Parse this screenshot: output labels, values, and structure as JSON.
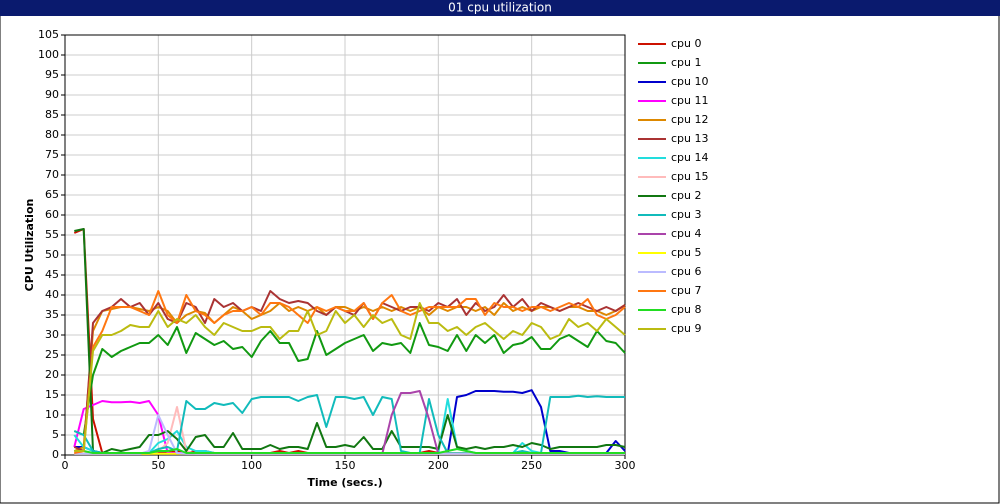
{
  "chart_data": {
    "type": "line",
    "title": "01 cpu utilization",
    "x_label": "Time (secs.)",
    "y_label": "CPU Utilization",
    "xlim": [
      0,
      300
    ],
    "xticks": [
      0,
      50,
      100,
      150,
      200,
      250,
      300
    ],
    "ylim": [
      0,
      105
    ],
    "yticks": [
      0,
      5,
      10,
      15,
      20,
      25,
      30,
      35,
      40,
      45,
      50,
      55,
      60,
      65,
      70,
      75,
      80,
      85,
      90,
      95,
      100,
      105
    ],
    "grid": true,
    "legend": "right",
    "x": [
      5,
      10,
      15,
      20,
      25,
      30,
      35,
      40,
      45,
      50,
      55,
      60,
      65,
      70,
      75,
      80,
      85,
      90,
      95,
      100,
      105,
      110,
      115,
      120,
      125,
      130,
      135,
      140,
      145,
      150,
      155,
      160,
      165,
      170,
      175,
      180,
      185,
      190,
      195,
      200,
      205,
      210,
      215,
      220,
      225,
      230,
      235,
      240,
      245,
      250,
      255,
      260,
      265,
      270,
      275,
      280,
      285,
      290,
      295,
      300
    ],
    "series": [
      {
        "name": "cpu 0",
        "color": "#cc1100",
        "values": [
          55.5,
          56.5,
          9,
          0.5,
          0.5,
          0.3,
          0.5,
          0.5,
          0.3,
          0.5,
          0.5,
          1,
          0.5,
          1,
          1,
          0.5,
          0.5,
          0.5,
          0.5,
          0.5,
          0.5,
          0.5,
          1,
          0.5,
          1,
          0.5,
          0.5,
          0.5,
          0.5,
          0.5,
          0.5,
          0.5,
          0.5,
          0.5,
          0.5,
          0.5,
          0.5,
          0.5,
          1,
          0.5,
          0.5,
          0.5,
          0.5,
          0.5,
          0.5,
          0.5,
          0.5,
          0.5,
          0.5,
          0.5,
          0.5,
          0.5,
          0.5,
          0.5,
          0.5,
          0.5,
          0.5,
          0.5,
          0.5,
          0.5
        ]
      },
      {
        "name": "cpu 1",
        "color": "#119911",
        "values": [
          6,
          5,
          20,
          26.5,
          24.5,
          26,
          27,
          28,
          28,
          30,
          27.5,
          32,
          25.5,
          30.5,
          29,
          27.5,
          28.5,
          26.5,
          27,
          24.5,
          28.5,
          31,
          28,
          28,
          23.5,
          24,
          31,
          25,
          26.5,
          28,
          29,
          30,
          26,
          28,
          27.5,
          28,
          25.5,
          33,
          27.5,
          27,
          26,
          30,
          26,
          30,
          28,
          30,
          25.5,
          27.5,
          28,
          29.5,
          26.5,
          26.5,
          29,
          30,
          28.5,
          27,
          31,
          28.5,
          28,
          25.5
        ]
      },
      {
        "name": "cpu 10",
        "color": "#0000cc",
        "values": [
          2,
          2,
          1,
          0.5,
          0.3,
          0.3,
          0.3,
          0.3,
          0.3,
          0.3,
          0.3,
          0.3,
          0.3,
          0.3,
          0.3,
          0.3,
          0.3,
          0.3,
          0.3,
          0.3,
          0.3,
          0.3,
          0.3,
          0.3,
          0.3,
          0.3,
          0.3,
          0.3,
          0.3,
          0.3,
          0.3,
          0.3,
          0.3,
          0.3,
          0.3,
          0.3,
          0.3,
          0.3,
          0.3,
          0.3,
          0.3,
          14.5,
          15,
          16,
          16,
          16,
          15.8,
          15.8,
          15.5,
          16.2,
          12,
          1,
          1,
          0.5,
          0.5,
          0.5,
          0.5,
          0.5,
          3.5,
          1
        ]
      },
      {
        "name": "cpu 11",
        "color": "#ff00ff",
        "values": [
          2,
          11.5,
          12.5,
          13.5,
          13.2,
          13.2,
          13.3,
          13,
          13.5,
          10,
          0.5,
          0.5,
          0.5,
          0.3,
          0.3,
          0.3,
          0.3,
          0.3,
          0.3,
          0.3,
          0.3,
          0.3,
          0.3,
          0.3,
          0.3,
          0.3,
          0.3,
          0.3,
          0.3,
          0.3,
          0.3,
          0.3,
          0.3,
          0.3,
          0.3,
          0.3,
          0.3,
          0.3,
          0.3,
          0.3,
          0.3,
          0.3,
          0.3,
          0.3,
          0.3,
          0.3,
          0.3,
          0.3,
          0.3,
          0.3,
          0.3,
          0.3,
          0.3,
          0.3,
          0.3,
          0.3,
          0.3,
          0.3,
          0.3,
          0.3
        ]
      },
      {
        "name": "cpu 12",
        "color": "#dd8800",
        "values": [
          1,
          2,
          31,
          36,
          36.5,
          37,
          37,
          36.5,
          36,
          37,
          36,
          33,
          35,
          36,
          35.5,
          33,
          35,
          37,
          36,
          34,
          35,
          36,
          38,
          36,
          37,
          36,
          37,
          35,
          37,
          37,
          36,
          37,
          36,
          37,
          36,
          37,
          36,
          37,
          35,
          37,
          36,
          37,
          37,
          36,
          37,
          35,
          38,
          36,
          37,
          36,
          37,
          37,
          36,
          37,
          37,
          36,
          36,
          35,
          36,
          37.5
        ]
      },
      {
        "name": "cpu 13",
        "color": "#aa3333",
        "values": [
          2,
          1,
          33,
          36,
          37,
          39,
          37,
          38,
          35,
          38,
          34,
          33,
          38,
          37,
          33,
          39,
          37,
          38,
          36,
          37,
          36,
          41,
          39,
          38,
          38.5,
          38,
          36,
          35,
          37,
          36,
          35,
          38,
          34,
          38,
          37,
          36,
          37,
          37,
          36,
          38,
          37,
          39,
          35,
          38,
          36,
          37,
          40,
          37,
          39,
          36,
          38,
          37,
          36,
          37,
          38,
          37,
          36,
          37,
          36,
          37.5
        ]
      },
      {
        "name": "cpu 14",
        "color": "#22dddd",
        "values": [
          5,
          2,
          1,
          0.5,
          0.5,
          0.5,
          0.5,
          0.5,
          0.5,
          3,
          4,
          6,
          2,
          1,
          1,
          0.5,
          0.5,
          0.5,
          0.5,
          0.5,
          0.5,
          0.5,
          0.5,
          0.5,
          0.5,
          0.5,
          0.5,
          0.5,
          0.5,
          0.5,
          0.5,
          0.5,
          0.5,
          0.5,
          0.5,
          0.5,
          0.5,
          0.5,
          0.5,
          0.5,
          14,
          2,
          1,
          0.5,
          0.5,
          0.5,
          0.5,
          0.5,
          3,
          1,
          0.5,
          0.5,
          0.5,
          0.5,
          0.5,
          0.5,
          0.5,
          0.5,
          0.5,
          0.5
        ]
      },
      {
        "name": "cpu 15",
        "color": "#ffbbbb",
        "values": [
          0.3,
          0.3,
          0.3,
          0.3,
          0.3,
          0.3,
          0.3,
          0.3,
          0.3,
          1,
          3,
          12,
          1,
          0.3,
          0.3,
          0.3,
          0.3,
          0.3,
          0.3,
          0.3,
          0.3,
          0.3,
          0.3,
          0.3,
          0.3,
          0.3,
          0.3,
          0.3,
          0.3,
          0.3,
          0.3,
          0.3,
          0.3,
          0.3,
          0.3,
          0.3,
          0.3,
          0.3,
          0.3,
          0.3,
          0.3,
          0.3,
          0.3,
          0.3,
          0.3,
          0.3,
          0.3,
          0.3,
          0.3,
          0.3,
          0.3,
          0.3,
          0.3,
          0.3,
          0.3,
          0.3,
          0.3,
          0.3,
          0.3,
          0.3
        ]
      },
      {
        "name": "cpu 2",
        "color": "#117711",
        "values": [
          56,
          56.5,
          1,
          0.5,
          1.5,
          1,
          1.5,
          2,
          5,
          5,
          6,
          4,
          1,
          4.5,
          5,
          2,
          2,
          5.5,
          1.5,
          1.5,
          1.5,
          2.5,
          1.5,
          2,
          2,
          1.5,
          8,
          2,
          2,
          2.5,
          2,
          4.5,
          1.5,
          1.5,
          6,
          2,
          2,
          2,
          2,
          1.5,
          10,
          2,
          1.5,
          2,
          1.5,
          2,
          2,
          2.5,
          2,
          3,
          2.5,
          1.5,
          2,
          2,
          2,
          2,
          2,
          2.5,
          2.5,
          2
        ]
      },
      {
        "name": "cpu 3",
        "color": "#11bbbb",
        "values": [
          6,
          5,
          1,
          0.5,
          0.5,
          0.5,
          0.5,
          0.5,
          0.5,
          1.5,
          2,
          1,
          13.5,
          11.5,
          11.5,
          13,
          12.5,
          13,
          10.5,
          14,
          14.5,
          14.5,
          14.5,
          14.5,
          13.5,
          14.5,
          15,
          7,
          14.5,
          14.5,
          14,
          14.5,
          10,
          14.5,
          14,
          1,
          0.5,
          0.5,
          14,
          5,
          0.5,
          0.5,
          0.5,
          0.5,
          0.5,
          0.5,
          0.5,
          0.5,
          1,
          0.5,
          0.5,
          14.5,
          14.5,
          14.5,
          14.8,
          14.5,
          14.7,
          14.5,
          14.5,
          14.5
        ]
      },
      {
        "name": "cpu 4",
        "color": "#aa44aa",
        "values": [
          0.3,
          0.3,
          0.3,
          0.3,
          0.3,
          0.3,
          0.3,
          0.3,
          0.3,
          0.3,
          0.3,
          0.3,
          0.3,
          0.3,
          0.3,
          0.3,
          0.3,
          0.3,
          0.3,
          0.3,
          0.3,
          0.3,
          0.3,
          0.3,
          0.3,
          0.3,
          0.3,
          0.3,
          0.3,
          0.3,
          0.3,
          0.3,
          0.3,
          0.3,
          10,
          15.5,
          15.5,
          16,
          9,
          0.3,
          0.3,
          0.3,
          0.3,
          0.3,
          0.3,
          0.3,
          0.3,
          0.3,
          0.3,
          0.3,
          0.3,
          0.3,
          0.3,
          0.3,
          0.3,
          0.3,
          0.3,
          0.3,
          0.3,
          0.3
        ]
      },
      {
        "name": "cpu 5",
        "color": "#ffff00",
        "values": [
          0.3,
          0.3,
          0.3,
          0.3,
          0.3,
          0.3,
          0.3,
          0.3,
          0.3,
          0.3,
          0.3,
          0.3,
          0.3,
          0.3,
          0.3,
          0.3,
          0.3,
          0.3,
          0.3,
          0.3,
          0.3,
          0.3,
          0.3,
          0.3,
          0.3,
          0.3,
          0.3,
          0.3,
          0.3,
          0.3,
          0.3,
          0.3,
          0.3,
          0.3,
          0.3,
          0.3,
          0.3,
          0.3,
          0.3,
          0.3,
          0.3,
          0.3,
          0.3,
          0.3,
          0.3,
          0.3,
          0.3,
          0.3,
          0.3,
          0.3,
          0.3,
          0.3,
          0.3,
          0.3,
          0.3,
          0.3,
          0.3,
          0.3,
          0.3,
          0.3
        ]
      },
      {
        "name": "cpu 6",
        "color": "#bbbbff",
        "values": [
          0.3,
          0.3,
          0.3,
          0.3,
          0.3,
          0.3,
          0.3,
          0.3,
          1,
          10,
          5,
          0.5,
          0.3,
          0.3,
          0.3,
          0.3,
          0.3,
          0.3,
          0.3,
          0.3,
          0.3,
          0.3,
          0.3,
          0.3,
          0.3,
          0.3,
          0.3,
          0.3,
          0.3,
          0.3,
          0.3,
          0.3,
          0.3,
          0.3,
          0.3,
          0.3,
          0.3,
          0.3,
          0.3,
          0.3,
          0.3,
          0.3,
          0.3,
          0.3,
          0.3,
          0.3,
          0.3,
          0.3,
          0.3,
          0.3,
          0.3,
          0.3,
          0.3,
          0.3,
          0.3,
          0.3,
          0.3,
          0.3,
          0.3,
          0.3
        ]
      },
      {
        "name": "cpu 7",
        "color": "#ff7711",
        "values": [
          0.5,
          1,
          27,
          31,
          37,
          37,
          37,
          36,
          35,
          41,
          35,
          33,
          40,
          36,
          35,
          33,
          35,
          36,
          36,
          37,
          35,
          38,
          38,
          37,
          35,
          33,
          37,
          36,
          37,
          36,
          36,
          38,
          34,
          38,
          40,
          36,
          35,
          36,
          37,
          37,
          37,
          37,
          39,
          39,
          35,
          38,
          37,
          37,
          36,
          37,
          37,
          36,
          37,
          38,
          37,
          39,
          35,
          34,
          35,
          37
        ]
      },
      {
        "name": "cpu 8",
        "color": "#22dd22",
        "values": [
          1,
          1,
          0.5,
          0.5,
          0.5,
          0.5,
          0.5,
          0.5,
          0.5,
          1,
          1,
          1.5,
          0.5,
          0.5,
          0.5,
          0.5,
          0.5,
          0.5,
          0.5,
          0.5,
          0.5,
          0.5,
          0.5,
          0.5,
          0.5,
          0.5,
          0.5,
          0.5,
          0.5,
          0.5,
          0.5,
          0.5,
          0.5,
          0.5,
          0.5,
          0.5,
          0.5,
          0.5,
          0.5,
          0.5,
          1,
          1.5,
          1,
          0.5,
          0.5,
          0.5,
          0.5,
          0.5,
          0.5,
          0.5,
          0.5,
          0.5,
          0.5,
          0.5,
          0.5,
          0.5,
          0.5,
          0.5,
          0.5,
          0.5
        ]
      },
      {
        "name": "cpu 9",
        "color": "#bbbb11",
        "values": [
          1,
          1,
          26,
          30,
          30,
          31,
          32.5,
          32,
          32,
          36,
          32,
          34,
          33,
          35,
          32,
          30,
          33,
          32,
          31,
          31,
          32,
          32,
          29,
          31,
          31,
          36,
          30,
          31,
          36,
          33,
          35,
          32,
          35,
          33,
          34,
          30,
          29,
          38,
          33,
          33,
          31,
          32,
          30,
          32,
          33,
          31,
          29,
          31,
          30,
          33,
          32,
          29,
          30,
          34,
          32,
          33,
          31,
          34,
          32,
          30
        ]
      }
    ]
  }
}
